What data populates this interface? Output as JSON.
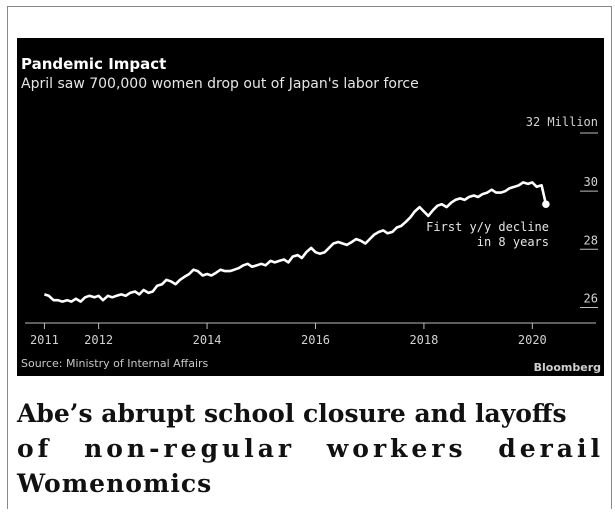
{
  "colors": {
    "background": "#000000",
    "line": "#ffffff",
    "title": "#ffffff",
    "subtitle": "#e6e6e6",
    "muted": "#c8c8c8"
  },
  "chart_data": {
    "type": "line",
    "title": "Pandemic Impact",
    "subtitle": "April saw 700,000 women drop out of Japan's labor force",
    "unit_label": "32 Million",
    "x_ticks": [
      "2011",
      "2012",
      "2014",
      "2016",
      "2018",
      "2020"
    ],
    "y_ticks": [
      "26",
      "28",
      "30"
    ],
    "xlim": [
      2010.9,
      2020.75
    ],
    "ylim": [
      25.5,
      32
    ],
    "grid": false,
    "series": [
      {
        "x": [
          2011.0,
          2011.08,
          2011.17,
          2011.25,
          2011.33,
          2011.42,
          2011.5,
          2011.58,
          2011.67,
          2011.75,
          2011.83,
          2011.92,
          2012.0,
          2012.08,
          2012.17,
          2012.25,
          2012.33,
          2012.42,
          2012.5,
          2012.58,
          2012.67,
          2012.75,
          2012.83,
          2012.92,
          2013.0,
          2013.08,
          2013.17,
          2013.25,
          2013.33,
          2013.42,
          2013.5,
          2013.58,
          2013.67,
          2013.75,
          2013.83,
          2013.92,
          2014.0,
          2014.08,
          2014.17,
          2014.25,
          2014.33,
          2014.42,
          2014.5,
          2014.58,
          2014.67,
          2014.75,
          2014.83,
          2014.92,
          2015.0,
          2015.08,
          2015.17,
          2015.25,
          2015.33,
          2015.42,
          2015.5,
          2015.58,
          2015.67,
          2015.75,
          2015.83,
          2015.92,
          2016.0,
          2016.08,
          2016.17,
          2016.25,
          2016.33,
          2016.42,
          2016.5,
          2016.58,
          2016.67,
          2016.75,
          2016.83,
          2016.92,
          2017.0,
          2017.08,
          2017.17,
          2017.25,
          2017.33,
          2017.42,
          2017.5,
          2017.58,
          2017.67,
          2017.75,
          2017.83,
          2017.92,
          2018.0,
          2018.08,
          2018.17,
          2018.25,
          2018.33,
          2018.42,
          2018.5,
          2018.58,
          2018.67,
          2018.75,
          2018.83,
          2018.92,
          2019.0,
          2019.08,
          2019.17,
          2019.25,
          2019.33,
          2019.42,
          2019.5,
          2019.58,
          2019.67,
          2019.75,
          2019.83,
          2019.92,
          2020.0,
          2020.08,
          2020.17,
          2020.25
        ],
        "values": [
          26.45,
          26.4,
          26.25,
          26.25,
          26.2,
          26.25,
          26.2,
          26.3,
          26.2,
          26.35,
          26.4,
          26.35,
          26.4,
          26.25,
          26.4,
          26.35,
          26.4,
          26.45,
          26.4,
          26.5,
          26.55,
          26.45,
          26.6,
          26.5,
          26.55,
          26.75,
          26.8,
          26.95,
          26.9,
          26.8,
          26.95,
          27.05,
          27.15,
          27.3,
          27.25,
          27.1,
          27.15,
          27.1,
          27.2,
          27.3,
          27.25,
          27.25,
          27.3,
          27.35,
          27.45,
          27.5,
          27.4,
          27.45,
          27.5,
          27.45,
          27.6,
          27.55,
          27.6,
          27.65,
          27.55,
          27.75,
          27.8,
          27.7,
          27.9,
          28.05,
          27.9,
          27.85,
          27.9,
          28.05,
          28.2,
          28.25,
          28.2,
          28.15,
          28.25,
          28.35,
          28.3,
          28.2,
          28.35,
          28.5,
          28.6,
          28.65,
          28.55,
          28.6,
          28.75,
          28.8,
          28.95,
          29.1,
          29.3,
          29.45,
          29.3,
          29.15,
          29.35,
          29.5,
          29.55,
          29.45,
          29.6,
          29.7,
          29.75,
          29.7,
          29.8,
          29.85,
          29.8,
          29.9,
          29.95,
          30.05,
          29.95,
          29.95,
          30.0,
          30.1,
          30.15,
          30.2,
          30.3,
          30.25,
          30.3,
          30.15,
          30.2,
          29.55
        ]
      }
    ],
    "annotation": "First y/y decline in 8 years"
  },
  "source_text": "Source: Ministry of Internal Affairs",
  "brand": "Bloomberg",
  "headline": {
    "line1": "Abe’s abrupt school closure and layoffs",
    "line2": "of non-regular workers derail",
    "line3": "Womenomics"
  }
}
